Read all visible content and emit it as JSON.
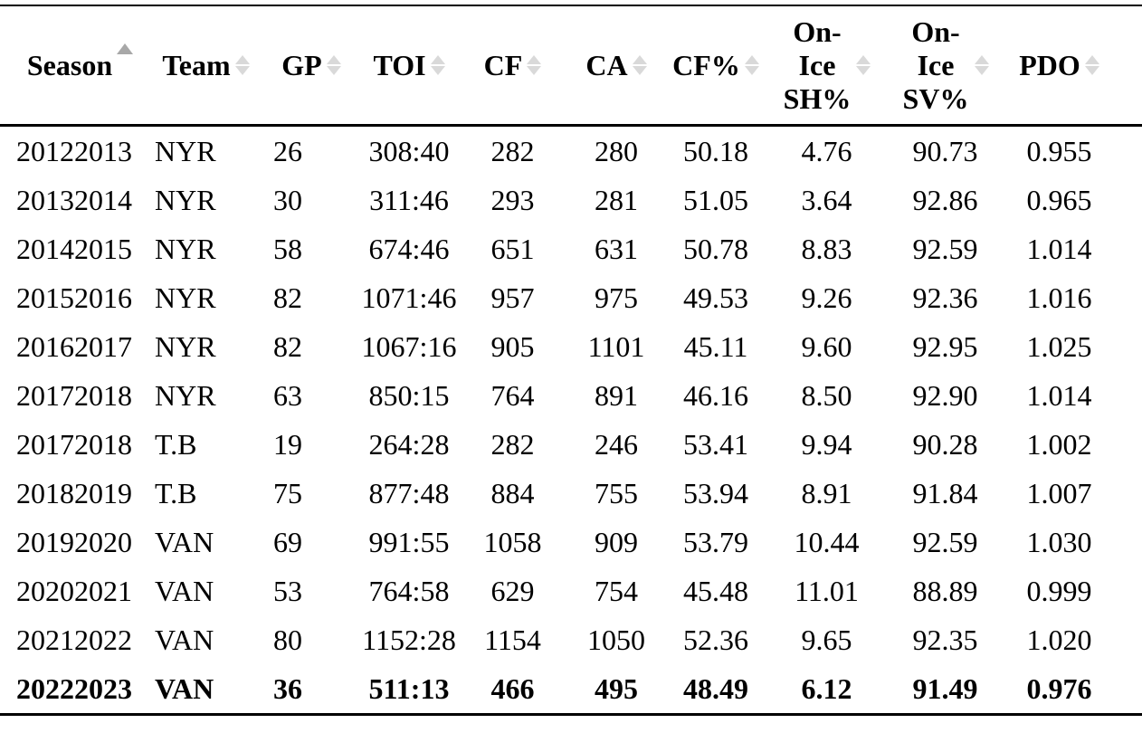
{
  "table": {
    "sort_active_color": "#a8a8a8",
    "sort_inactive_color": "#d9d9d9",
    "columns": [
      {
        "key": "season",
        "label": "Season",
        "sorted": "asc"
      },
      {
        "key": "team",
        "label": "Team",
        "sorted": "none"
      },
      {
        "key": "gp",
        "label": "GP",
        "sorted": "none"
      },
      {
        "key": "toi",
        "label": "TOI",
        "sorted": "none"
      },
      {
        "key": "cf",
        "label": "CF",
        "sorted": "none"
      },
      {
        "key": "ca",
        "label": "CA",
        "sorted": "none"
      },
      {
        "key": "cf_pct",
        "label": "CF%",
        "sorted": "none"
      },
      {
        "key": "on_ice_sh_pct",
        "label": "On-Ice SH%",
        "sorted": "none"
      },
      {
        "key": "on_ice_sv_pct",
        "label": "On-Ice SV%",
        "sorted": "none"
      },
      {
        "key": "pdo",
        "label": "PDO",
        "sorted": "none"
      }
    ],
    "rows": [
      {
        "season": "20122013",
        "team": "NYR",
        "gp": "26",
        "toi": "308:40",
        "cf": "282",
        "ca": "280",
        "cf_pct": "50.18",
        "on_ice_sh_pct": "4.76",
        "on_ice_sv_pct": "90.73",
        "pdo": "0.955"
      },
      {
        "season": "20132014",
        "team": "NYR",
        "gp": "30",
        "toi": "311:46",
        "cf": "293",
        "ca": "281",
        "cf_pct": "51.05",
        "on_ice_sh_pct": "3.64",
        "on_ice_sv_pct": "92.86",
        "pdo": "0.965"
      },
      {
        "season": "20142015",
        "team": "NYR",
        "gp": "58",
        "toi": "674:46",
        "cf": "651",
        "ca": "631",
        "cf_pct": "50.78",
        "on_ice_sh_pct": "8.83",
        "on_ice_sv_pct": "92.59",
        "pdo": "1.014"
      },
      {
        "season": "20152016",
        "team": "NYR",
        "gp": "82",
        "toi": "1071:46",
        "cf": "957",
        "ca": "975",
        "cf_pct": "49.53",
        "on_ice_sh_pct": "9.26",
        "on_ice_sv_pct": "92.36",
        "pdo": "1.016"
      },
      {
        "season": "20162017",
        "team": "NYR",
        "gp": "82",
        "toi": "1067:16",
        "cf": "905",
        "ca": "1101",
        "cf_pct": "45.11",
        "on_ice_sh_pct": "9.60",
        "on_ice_sv_pct": "92.95",
        "pdo": "1.025"
      },
      {
        "season": "20172018",
        "team": "NYR",
        "gp": "63",
        "toi": "850:15",
        "cf": "764",
        "ca": "891",
        "cf_pct": "46.16",
        "on_ice_sh_pct": "8.50",
        "on_ice_sv_pct": "92.90",
        "pdo": "1.014"
      },
      {
        "season": "20172018",
        "team": "T.B",
        "gp": "19",
        "toi": "264:28",
        "cf": "282",
        "ca": "246",
        "cf_pct": "53.41",
        "on_ice_sh_pct": "9.94",
        "on_ice_sv_pct": "90.28",
        "pdo": "1.002"
      },
      {
        "season": "20182019",
        "team": "T.B",
        "gp": "75",
        "toi": "877:48",
        "cf": "884",
        "ca": "755",
        "cf_pct": "53.94",
        "on_ice_sh_pct": "8.91",
        "on_ice_sv_pct": "91.84",
        "pdo": "1.007"
      },
      {
        "season": "20192020",
        "team": "VAN",
        "gp": "69",
        "toi": "991:55",
        "cf": "1058",
        "ca": "909",
        "cf_pct": "53.79",
        "on_ice_sh_pct": "10.44",
        "on_ice_sv_pct": "92.59",
        "pdo": "1.030"
      },
      {
        "season": "20202021",
        "team": "VAN",
        "gp": "53",
        "toi": "764:58",
        "cf": "629",
        "ca": "754",
        "cf_pct": "45.48",
        "on_ice_sh_pct": "11.01",
        "on_ice_sv_pct": "88.89",
        "pdo": "0.999"
      },
      {
        "season": "20212022",
        "team": "VAN",
        "gp": "80",
        "toi": "1152:28",
        "cf": "1154",
        "ca": "1050",
        "cf_pct": "52.36",
        "on_ice_sh_pct": "9.65",
        "on_ice_sv_pct": "92.35",
        "pdo": "1.020"
      },
      {
        "season": "20222023",
        "team": "VAN",
        "gp": "36",
        "toi": "511:13",
        "cf": "466",
        "ca": "495",
        "cf_pct": "48.49",
        "on_ice_sh_pct": "6.12",
        "on_ice_sv_pct": "91.49",
        "pdo": "0.976"
      }
    ],
    "last_row_bold": true
  }
}
